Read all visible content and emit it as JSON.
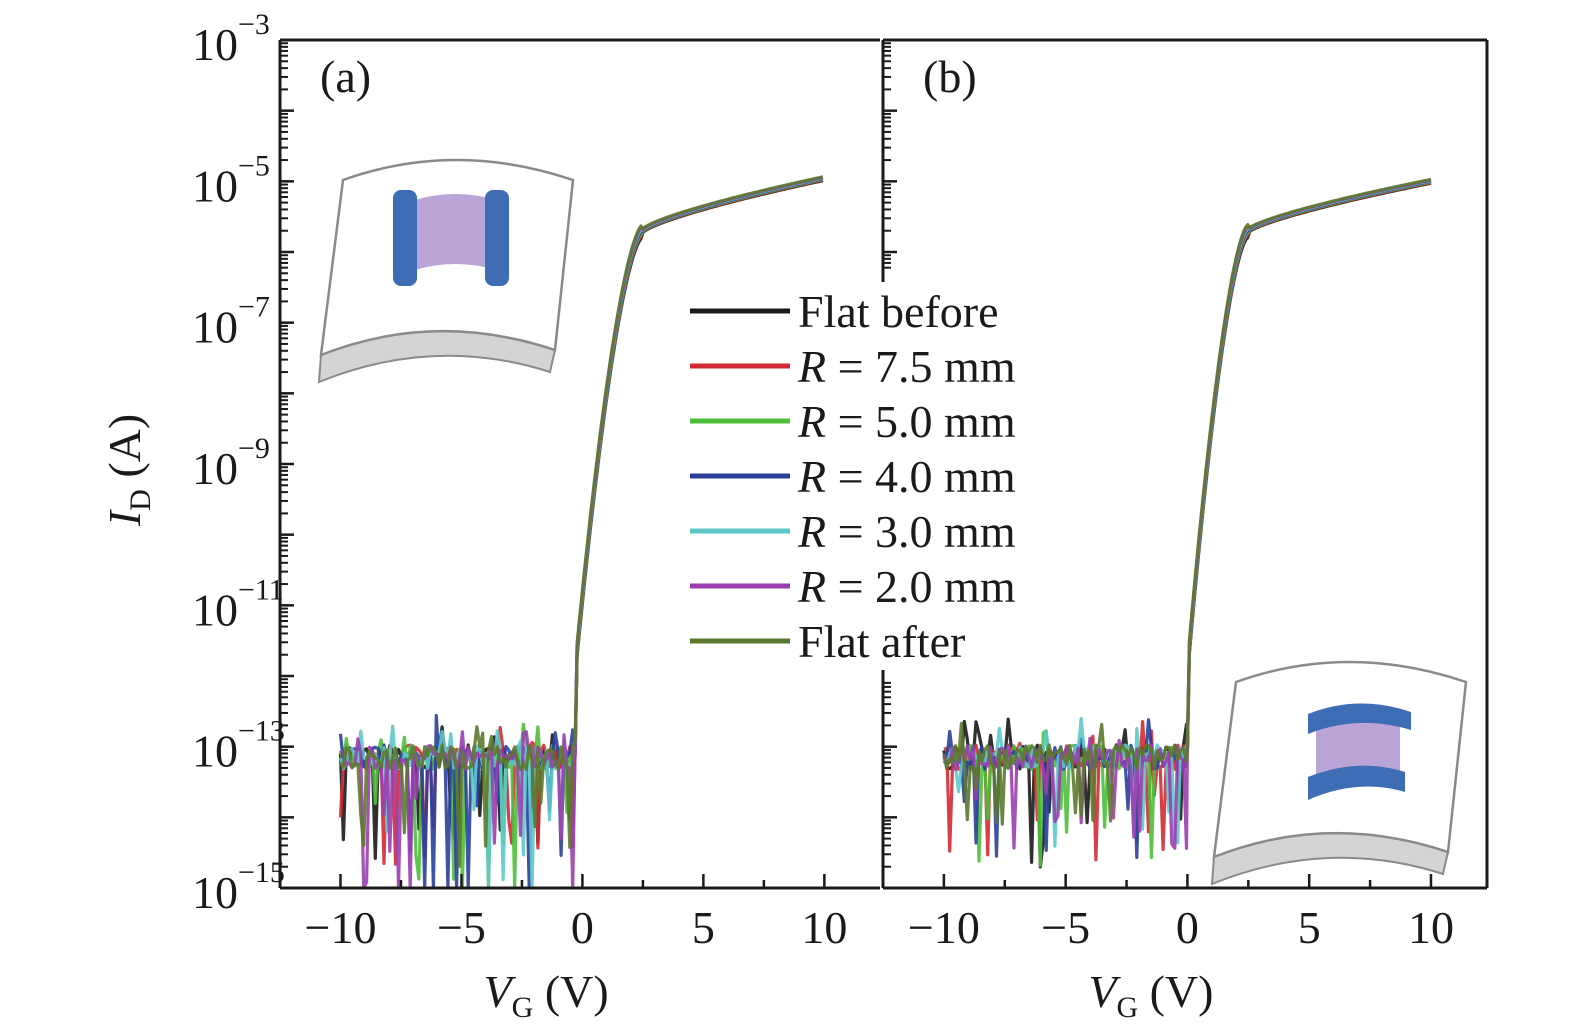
{
  "chart_data": [
    {
      "panel": "a",
      "type": "line",
      "panel_label": "(a)",
      "xlabel": "V_G (V)",
      "ylabel": "I_D (A)",
      "yscale": "log",
      "xlim": [
        -12.5,
        12.3
      ],
      "ylim": [
        1e-15,
        0.001
      ],
      "xticks": [
        -10,
        -5,
        0,
        5,
        10
      ],
      "yticks": [
        -15,
        -13,
        -11,
        -9,
        -7,
        -5,
        -3
      ],
      "inset": "electrodes-vertical",
      "series_shape": {
        "noise_floor": 1e-13,
        "turn_on_voltage": -0.3,
        "subthreshold_end": [
          2.5,
          2e-06
        ],
        "end_point": [
          10,
          1.1e-05
        ]
      }
    },
    {
      "panel": "b",
      "type": "line",
      "panel_label": "(b)",
      "xlabel": "V_G (V)",
      "ylabel": "",
      "yscale": "log",
      "xlim": [
        -12.5,
        12.3
      ],
      "ylim": [
        1e-15,
        0.001
      ],
      "xticks": [
        -10,
        -5,
        0,
        5,
        10
      ],
      "inset": "electrodes-horizontal",
      "series_shape": {
        "noise_floor": 1e-13,
        "turn_on_voltage": 0.0,
        "subthreshold_end": [
          2.5,
          2e-06
        ],
        "end_point": [
          10,
          1e-05
        ]
      }
    }
  ],
  "legend": [
    {
      "label": "Flat before",
      "italic_prefix": "",
      "color": "#1a1a1a"
    },
    {
      "label": " = 7.5 mm",
      "italic_prefix": "R",
      "color": "#d42a35"
    },
    {
      "label": " = 5.0 mm",
      "italic_prefix": "R",
      "color": "#4dbf3a"
    },
    {
      "label": " = 4.0 mm",
      "italic_prefix": "R",
      "color": "#2b3f9c"
    },
    {
      "label": " = 3.0 mm",
      "italic_prefix": "R",
      "color": "#5ec8c8"
    },
    {
      "label": " = 2.0 mm",
      "italic_prefix": "R",
      "color": "#9a3fb0"
    },
    {
      "label": "Flat after",
      "italic_prefix": "",
      "color": "#5c7a2e"
    }
  ],
  "axis_text": {
    "xlabel_main": "V",
    "xlabel_sub": "G",
    "xlabel_unit": " (V)",
    "ylabel_main": "I",
    "ylabel_sub": "D",
    "ylabel_unit": " (A)",
    "x_tick_labels": [
      "−10",
      "−5",
      "0",
      "5",
      "10"
    ],
    "y_tick_labels": [
      {
        "base": "10",
        "exp": "−3"
      },
      {
        "base": "10",
        "exp": "−5"
      },
      {
        "base": "10",
        "exp": "−7"
      },
      {
        "base": "10",
        "exp": "−9"
      },
      {
        "base": "10",
        "exp": "−11"
      },
      {
        "base": "10",
        "exp": "−13"
      },
      {
        "base": "10",
        "exp": "−15"
      }
    ]
  },
  "colors": {
    "axis": "#1a1a1a",
    "electrode": "#3e6cb5",
    "channel": "#bba5d6",
    "substrate_edge": "#d4d4d4",
    "substrate_outline": "#8a8a8a"
  }
}
